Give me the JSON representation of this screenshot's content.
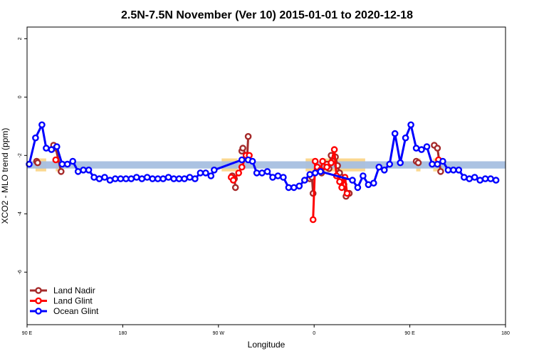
{
  "chart_data": {
    "type": "line",
    "title": "2.5N-7.5N November (Ver 10)   2015-01-01 to 2020-12-18",
    "xlabel": "Longitude",
    "ylabel": "XCO2 - MLO trend (ppm)",
    "xlim": [
      90,
      540
    ],
    "ylim": [
      -7.8,
      2.4
    ],
    "x_ticks": [
      {
        "value": 90,
        "label": "90 E"
      },
      {
        "value": 180,
        "label": "180"
      },
      {
        "value": 270,
        "label": "90 W"
      },
      {
        "value": 360,
        "label": "0"
      },
      {
        "value": 450,
        "label": "90 E"
      },
      {
        "value": 540,
        "label": "180"
      }
    ],
    "y_ticks": [
      {
        "value": 2,
        "label": "2"
      },
      {
        "value": 0,
        "label": "0"
      },
      {
        "value": -2,
        "label": "-2"
      },
      {
        "value": -4,
        "label": "-4"
      },
      {
        "value": -6,
        "label": "-6"
      }
    ],
    "grid": false,
    "legend_position": "bottom-left",
    "band": {
      "y_low": -2.45,
      "y_high": -2.2,
      "color": "#a7bfe0"
    },
    "highlight_color": "#fbd890",
    "highlights": [
      {
        "x0": 98,
        "x1": 108
      },
      {
        "x0": 117,
        "x1": 121
      },
      {
        "x0": 273,
        "x1": 288
      },
      {
        "x0": 352,
        "x1": 362
      },
      {
        "x0": 370,
        "x1": 408
      },
      {
        "x0": 456,
        "x1": 460
      },
      {
        "x0": 472,
        "x1": 482
      }
    ],
    "series": [
      {
        "name": "Land Nadir",
        "color": "#a52a2a",
        "segments": [
          [
            [
              99,
              -2.2
            ],
            [
              100,
              -2.25
            ]
          ],
          [
            [
              115,
              -1.65
            ],
            [
              117,
              -1.75
            ],
            [
              122,
              -2.55
            ]
          ],
          [
            [
              283,
              -2.7
            ],
            [
              285,
              -2.8
            ],
            [
              286,
              -3.1
            ]
          ],
          [
            [
              292,
              -1.85
            ],
            [
              293,
              -1.75
            ],
            [
              297,
              -2.1
            ],
            [
              298,
              -1.35
            ]
          ],
          [
            [
              356,
              -2.8
            ],
            [
              358,
              -2.75
            ],
            [
              359,
              -3.3
            ]
          ],
          [
            [
              367,
              -2.6
            ],
            [
              372,
              -2.3
            ],
            [
              374,
              -2.45
            ],
            [
              376,
              -2.0
            ],
            [
              380,
              -2.05
            ],
            [
              382,
              -2.35
            ],
            [
              384,
              -2.6
            ],
            [
              386,
              -2.75
            ],
            [
              388,
              -3.0
            ],
            [
              390,
              -3.4
            ],
            [
              393,
              -3.3
            ]
          ],
          [
            [
              456,
              -2.2
            ],
            [
              458,
              -2.25
            ]
          ],
          [
            [
              473,
              -1.65
            ],
            [
              476,
              -1.75
            ],
            [
              479,
              -2.55
            ]
          ]
        ]
      },
      {
        "name": "Land Glint",
        "color": "#ff0000",
        "segments": [
          [
            [
              117,
              -2.15
            ]
          ],
          [
            [
              282,
              -2.75
            ],
            [
              284,
              -2.85
            ],
            [
              289,
              -2.6
            ],
            [
              292,
              -2.4
            ],
            [
              296,
              -2.0
            ],
            [
              299,
              -2.0
            ]
          ],
          [
            [
              359,
              -4.2
            ],
            [
              361,
              -2.2
            ],
            [
              363,
              -2.4
            ],
            [
              366,
              -2.5
            ],
            [
              368,
              -2.2
            ],
            [
              372,
              -2.4
            ],
            [
              376,
              -2.25
            ],
            [
              379,
              -1.8
            ],
            [
              381,
              -2.7
            ],
            [
              384,
              -2.9
            ],
            [
              386,
              -3.1
            ],
            [
              389,
              -2.75
            ],
            [
              391,
              -3.3
            ]
          ],
          [
            [
              477,
              -2.15
            ]
          ]
        ]
      },
      {
        "name": "Ocean Glint",
        "color": "#0000ff",
        "segments": [
          [
            [
              92,
              -2.3
            ],
            [
              98,
              -1.4
            ],
            [
              104,
              -0.95
            ],
            [
              108,
              -1.75
            ],
            [
              113,
              -1.8
            ],
            [
              118,
              -1.7
            ],
            [
              123,
              -2.3
            ],
            [
              128,
              -2.3
            ],
            [
              133,
              -2.2
            ],
            [
              138,
              -2.55
            ],
            [
              143,
              -2.5
            ],
            [
              148,
              -2.5
            ],
            [
              153,
              -2.75
            ],
            [
              158,
              -2.8
            ],
            [
              163,
              -2.75
            ],
            [
              168,
              -2.85
            ],
            [
              173,
              -2.8
            ],
            [
              178,
              -2.8
            ],
            [
              183,
              -2.8
            ],
            [
              188,
              -2.8
            ],
            [
              193,
              -2.75
            ],
            [
              198,
              -2.8
            ],
            [
              203,
              -2.75
            ],
            [
              208,
              -2.8
            ],
            [
              213,
              -2.8
            ],
            [
              218,
              -2.8
            ],
            [
              223,
              -2.75
            ],
            [
              228,
              -2.8
            ],
            [
              233,
              -2.8
            ],
            [
              238,
              -2.8
            ],
            [
              243,
              -2.75
            ],
            [
              248,
              -2.8
            ],
            [
              253,
              -2.6
            ],
            [
              258,
              -2.6
            ],
            [
              263,
              -2.7
            ],
            [
              266,
              -2.5
            ],
            [
              292,
              -2.15
            ],
            [
              298,
              -2.15
            ],
            [
              302,
              -2.2
            ],
            [
              306,
              -2.6
            ],
            [
              311,
              -2.6
            ],
            [
              316,
              -2.55
            ],
            [
              321,
              -2.75
            ],
            [
              326,
              -2.7
            ],
            [
              331,
              -2.75
            ],
            [
              336,
              -3.1
            ],
            [
              341,
              -3.1
            ],
            [
              346,
              -3.05
            ],
            [
              351,
              -2.85
            ],
            [
              356,
              -2.65
            ],
            [
              361,
              -2.6
            ],
            [
              366,
              -2.55
            ],
            [
              396,
              -2.85
            ],
            [
              401,
              -3.1
            ],
            [
              406,
              -2.7
            ],
            [
              411,
              -3.0
            ],
            [
              416,
              -2.95
            ],
            [
              421,
              -2.4
            ],
            [
              426,
              -2.5
            ],
            [
              431,
              -2.3
            ],
            [
              436,
              -1.25
            ],
            [
              441,
              -2.25
            ],
            [
              446,
              -1.4
            ],
            [
              451,
              -0.95
            ],
            [
              456,
              -1.75
            ],
            [
              461,
              -1.8
            ],
            [
              466,
              -1.7
            ],
            [
              471,
              -2.3
            ],
            [
              476,
              -2.3
            ],
            [
              481,
              -2.2
            ],
            [
              486,
              -2.5
            ],
            [
              491,
              -2.5
            ],
            [
              496,
              -2.5
            ],
            [
              501,
              -2.75
            ],
            [
              506,
              -2.8
            ],
            [
              511,
              -2.75
            ],
            [
              516,
              -2.85
            ],
            [
              521,
              -2.8
            ],
            [
              526,
              -2.8
            ],
            [
              531,
              -2.85
            ]
          ]
        ]
      }
    ]
  }
}
